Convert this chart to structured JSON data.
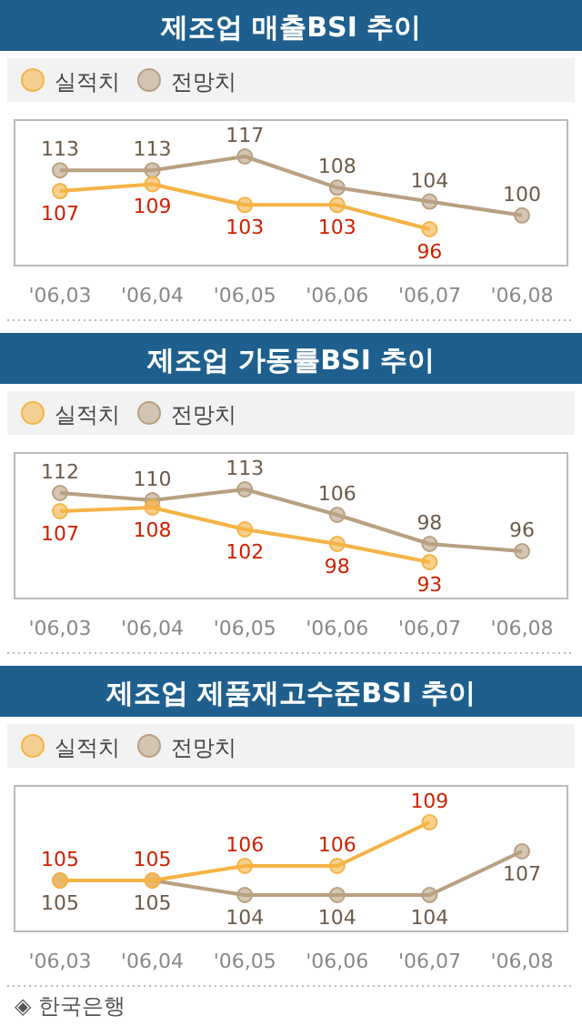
{
  "chart_data": [
    {
      "type": "line",
      "title": "제조업 매출BSI 추이",
      "categories": [
        "'06,03",
        "'06,04",
        "'06,05",
        "'06,06",
        "'06,07",
        "'06,08"
      ],
      "series": [
        {
          "name": "실적치",
          "color": "#f5b345",
          "values": [
            107,
            109,
            103,
            103,
            96,
            null
          ]
        },
        {
          "name": "전망치",
          "color": "#b8a080",
          "values": [
            113,
            113,
            117,
            108,
            104,
            100
          ]
        }
      ],
      "data_labels": true,
      "legend": "top left",
      "marker": "circle"
    },
    {
      "type": "line",
      "title": "제조업 가동률BSI 추이",
      "categories": [
        "'06,03",
        "'06,04",
        "'06,05",
        "'06,06",
        "'06,07",
        "'06,08"
      ],
      "series": [
        {
          "name": "실적치",
          "color": "#f5b345",
          "values": [
            107,
            108,
            102,
            98,
            93,
            null
          ]
        },
        {
          "name": "전망치",
          "color": "#b8a080",
          "values": [
            112,
            110,
            113,
            106,
            98,
            96
          ]
        }
      ],
      "data_labels": true,
      "legend": "top left",
      "marker": "circle"
    },
    {
      "type": "line",
      "title": "제조업 제품재고수준BSI 추이",
      "categories": [
        "'06,03",
        "'06,04",
        "'06,05",
        "'06,06",
        "'06,07",
        "'06,08"
      ],
      "series": [
        {
          "name": "실적치",
          "color": "#f5b345",
          "values": [
            105,
            105,
            106,
            106,
            109,
            null
          ]
        },
        {
          "name": "전망치",
          "color": "#b8a080",
          "values": [
            105,
            105,
            104,
            104,
            104,
            107
          ]
        }
      ],
      "data_labels": true,
      "legend": "top left",
      "marker": "circle",
      "annotations": [
        "◈ 한국은행"
      ]
    }
  ]
}
